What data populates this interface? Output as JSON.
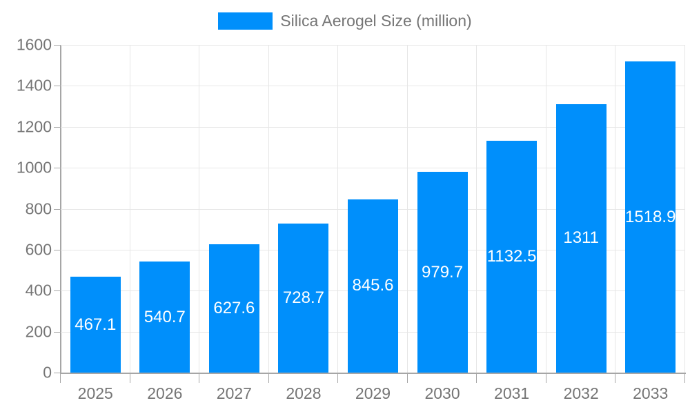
{
  "chart_data": {
    "type": "bar",
    "title": "Silica Aerogel Size (million)",
    "legend_entries": [
      "Silica Aerogel Size (million)"
    ],
    "legend_position": "top-center",
    "categories": [
      "2025",
      "2026",
      "2027",
      "2028",
      "2029",
      "2030",
      "2031",
      "2032",
      "2033"
    ],
    "series": [
      {
        "name": "Silica Aerogel Size (million)",
        "values": [
          467.1,
          540.7,
          627.6,
          728.7,
          845.6,
          979.7,
          1132.5,
          1311,
          1518.9
        ],
        "value_labels": [
          "467.1",
          "540.7",
          "627.6",
          "728.7",
          "845.6",
          "979.7",
          "1132.5",
          "1311",
          "1518.9"
        ]
      }
    ],
    "xlabel": "",
    "ylabel": "",
    "ylim": [
      0,
      1600
    ],
    "yticks": [
      0,
      200,
      400,
      600,
      800,
      1000,
      1200,
      1400,
      1600
    ],
    "grid": true,
    "value_labels_inside_bars": true
  },
  "colors": {
    "bar": "#008FFB",
    "grid": "#e6e6e6",
    "axis": "#a6a6a6",
    "tick_text": "#757575",
    "legend_text": "#757575",
    "bar_value_text": "#ffffff",
    "background": "#ffffff"
  }
}
